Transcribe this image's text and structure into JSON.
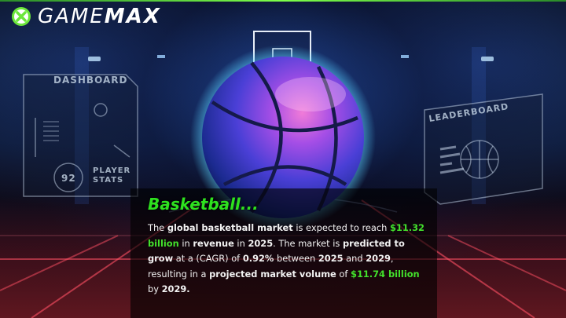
{
  "brand": {
    "name_light": "GAME",
    "name_bold": "MAX",
    "accent_color": "#7dff4a"
  },
  "hud": {
    "dashboard_label": "DASHBOARD",
    "leaderboard_label": "LEADERBOARD",
    "player_stats_line1": "PLAYER",
    "player_stats_line2": "STATS",
    "stat_value": "92"
  },
  "content": {
    "heading": "Basketball...",
    "accent_color": "#2ee21f",
    "segments": [
      {
        "text": "The ",
        "style": "normal"
      },
      {
        "text": "global basketball market",
        "style": "bold"
      },
      {
        "text": " is expected to reach ",
        "style": "normal"
      },
      {
        "text": "$11.32 billion",
        "style": "green"
      },
      {
        "text": " in ",
        "style": "normal"
      },
      {
        "text": "revenue",
        "style": "bold"
      },
      {
        "text": " in ",
        "style": "normal"
      },
      {
        "text": "2025",
        "style": "bold"
      },
      {
        "text": ". The market is ",
        "style": "normal"
      },
      {
        "text": "predicted to grow",
        "style": "bold"
      },
      {
        "text": " at a (CAGR) of ",
        "style": "normal"
      },
      {
        "text": "0.92%",
        "style": "bold"
      },
      {
        "text": " between ",
        "style": "normal"
      },
      {
        "text": "2025",
        "style": "bold"
      },
      {
        "text": " and ",
        "style": "normal"
      },
      {
        "text": "2029",
        "style": "bold"
      },
      {
        "text": ", resulting in a ",
        "style": "normal"
      },
      {
        "text": "projected market volume",
        "style": "bold"
      },
      {
        "text": " of ",
        "style": "normal"
      },
      {
        "text": "$11.74 billion",
        "style": "green"
      },
      {
        "text": " by ",
        "style": "normal"
      },
      {
        "text": "2029.",
        "style": "bold"
      }
    ]
  }
}
